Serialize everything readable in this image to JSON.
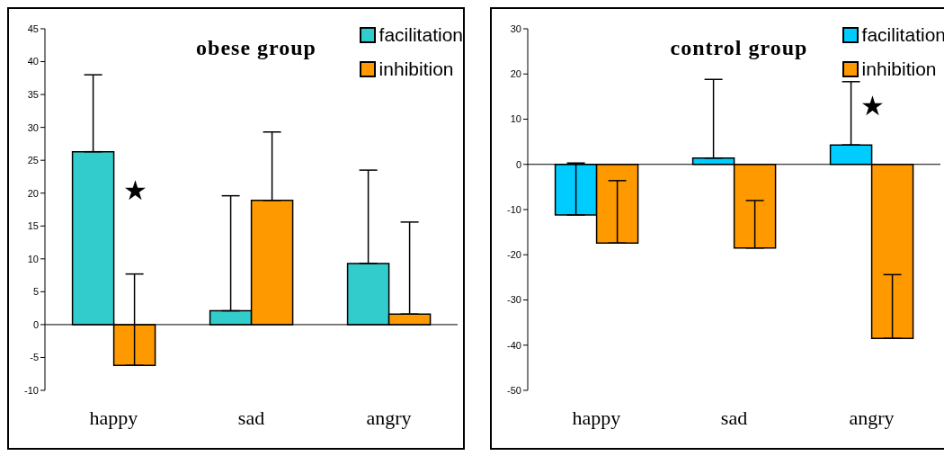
{
  "chart_data": [
    {
      "type": "bar",
      "title": "obese group",
      "categories": [
        "happy",
        "sad",
        "angry"
      ],
      "ylim": [
        -10,
        45
      ],
      "yticks": [
        -10,
        -5,
        0,
        5,
        10,
        15,
        20,
        25,
        30,
        35,
        40,
        45
      ],
      "legend": "top right",
      "series": [
        {
          "name": "facilitation",
          "color": "#33cccc",
          "values": [
            26.3,
            2.1,
            9.3
          ],
          "errors": [
            [
              26.3,
              38
            ],
            [
              2.1,
              19.6
            ],
            [
              9.3,
              23.5
            ]
          ]
        },
        {
          "name": "inhibition",
          "color": "#ff9900",
          "values": [
            -6.2,
            18.9,
            1.6
          ],
          "errors": [
            [
              -6.2,
              7.7
            ],
            [
              18.9,
              29.3
            ],
            [
              1.6,
              15.6
            ]
          ]
        }
      ],
      "annotations": [
        {
          "text": "★",
          "x": "happy",
          "y": 20.5
        }
      ]
    },
    {
      "type": "bar",
      "title": "control group",
      "categories": [
        "happy",
        "sad",
        "angry"
      ],
      "ylim": [
        -50,
        30
      ],
      "yticks": [
        -50,
        -40,
        -30,
        -20,
        -10,
        0,
        10,
        20,
        30
      ],
      "legend": "top right",
      "series": [
        {
          "name": "facilitation",
          "color": "#00ccff",
          "values": [
            -11.2,
            1.4,
            4.3
          ],
          "errors": [
            [
              -11.2,
              0.3
            ],
            [
              1.4,
              18.8
            ],
            [
              4.3,
              18.3
            ]
          ]
        },
        {
          "name": "inhibition",
          "color": "#ff9900",
          "values": [
            -17.4,
            -18.5,
            -38.5
          ],
          "errors": [
            [
              -17.4,
              -3.6
            ],
            [
              -18.5,
              -8
            ],
            [
              -38.5,
              -24.4
            ]
          ]
        }
      ],
      "annotations": [
        "★"
      ]
    }
  ]
}
